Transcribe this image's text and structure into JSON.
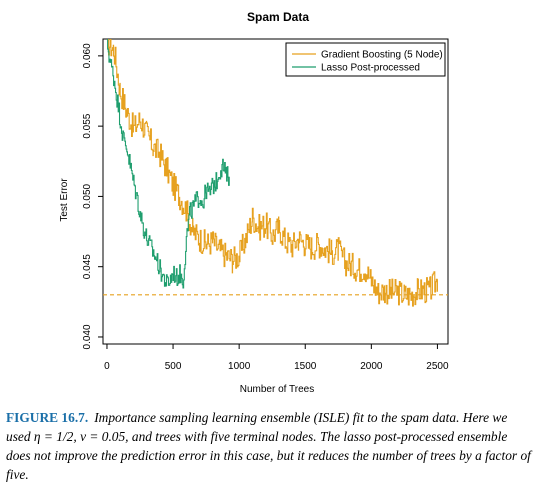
{
  "chart_data": {
    "type": "line",
    "title": "Spam Data",
    "xlabel": "Number of Trees",
    "ylabel": "Test Error",
    "xlim": [
      -30,
      2580
    ],
    "ylim": [
      0.0395,
      0.0612
    ],
    "x_ticks": [
      0,
      500,
      1000,
      1500,
      2000,
      2500
    ],
    "y_ticks": [
      0.04,
      0.045,
      0.05,
      0.055,
      0.06
    ],
    "y_tick_labels": [
      "0.040",
      "0.045",
      "0.050",
      "0.055",
      "0.060"
    ],
    "grid": false,
    "legend_position": "top-right",
    "reference_line": {
      "y": 0.043,
      "style": "dashed",
      "color": "#e6a11f"
    },
    "series": [
      {
        "name": "Gradient Boosting (5 Node)",
        "color": "#e6a11f",
        "x": [
          0,
          50,
          100,
          150,
          200,
          250,
          300,
          350,
          400,
          450,
          500,
          550,
          600,
          650,
          700,
          750,
          800,
          850,
          900,
          950,
          1000,
          1050,
          1100,
          1150,
          1200,
          1250,
          1300,
          1350,
          1400,
          1450,
          1500,
          1550,
          1600,
          1650,
          1700,
          1750,
          1800,
          1850,
          1900,
          1950,
          2000,
          2050,
          2100,
          2150,
          2200,
          2250,
          2300,
          2350,
          2400,
          2450,
          2500
        ],
        "values": [
          0.061,
          0.0605,
          0.0575,
          0.056,
          0.0548,
          0.0555,
          0.0545,
          0.0535,
          0.053,
          0.052,
          0.0508,
          0.05,
          0.049,
          0.0475,
          0.047,
          0.0466,
          0.0468,
          0.0462,
          0.0458,
          0.0455,
          0.0458,
          0.047,
          0.0485,
          0.0478,
          0.048,
          0.0472,
          0.0478,
          0.0468,
          0.0465,
          0.047,
          0.0466,
          0.0464,
          0.0466,
          0.0463,
          0.046,
          0.0462,
          0.0453,
          0.0451,
          0.0448,
          0.0449,
          0.044,
          0.0432,
          0.0433,
          0.0432,
          0.0432,
          0.043,
          0.043,
          0.0433,
          0.0433,
          0.0434,
          0.0441
        ]
      },
      {
        "name": "Lasso Post-processed",
        "color": "#1f9e6e",
        "x": [
          0,
          25,
          50,
          75,
          100,
          125,
          150,
          175,
          200,
          225,
          250,
          275,
          300,
          325,
          350,
          375,
          400,
          425,
          450,
          475,
          500,
          525,
          550,
          575,
          600,
          625,
          650,
          675,
          700,
          725,
          750,
          775,
          800,
          825,
          850,
          875,
          900,
          925
        ],
        "values": [
          0.061,
          0.0595,
          0.0585,
          0.057,
          0.0555,
          0.054,
          0.0535,
          0.0522,
          0.051,
          0.05,
          0.0488,
          0.0478,
          0.047,
          0.0465,
          0.046,
          0.0455,
          0.0448,
          0.0443,
          0.0438,
          0.044,
          0.0446,
          0.0442,
          0.0445,
          0.044,
          0.047,
          0.0488,
          0.0492,
          0.0497,
          0.05,
          0.0495,
          0.0505,
          0.0502,
          0.0508,
          0.051,
          0.0518,
          0.0522,
          0.0515,
          0.0514
        ]
      }
    ]
  },
  "caption": {
    "label": "FIGURE 16.7.",
    "text": "Importance sampling learning ensemble (ISLE) fit to the spam data. Here we used η = 1/2, ν = 0.05, and trees with five terminal nodes. The lasso post-processed ensemble does not improve the prediction error in this case, but it reduces the number of trees by a factor of five."
  }
}
